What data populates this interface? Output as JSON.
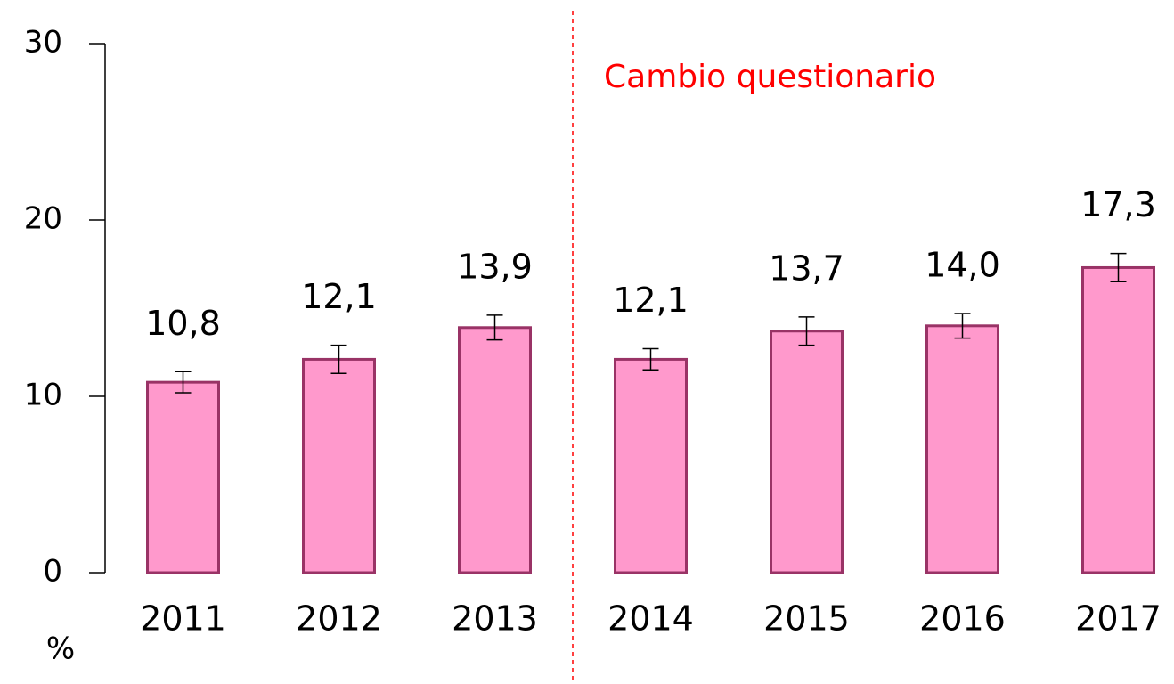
{
  "chart_data": {
    "type": "bar",
    "categories": [
      "2011",
      "2012",
      "2013",
      "2014",
      "2015",
      "2016",
      "2017"
    ],
    "values": [
      10.8,
      12.1,
      13.9,
      12.1,
      13.7,
      14.0,
      17.3
    ],
    "value_labels": [
      "10,8",
      "12,1",
      "13,9",
      "12,1",
      "13,7",
      "14,0",
      "17,3"
    ],
    "errors": [
      0.6,
      0.8,
      0.7,
      0.6,
      0.8,
      0.7,
      0.8
    ],
    "color": "#ff99cc",
    "edge_color": "#993366",
    "ylim": [
      0,
      30
    ],
    "yticks": [
      0,
      10,
      20,
      30
    ],
    "y_label": "%",
    "annotation": "Cambio questionario",
    "annotation_color": "#ff0000",
    "grid": false
  }
}
